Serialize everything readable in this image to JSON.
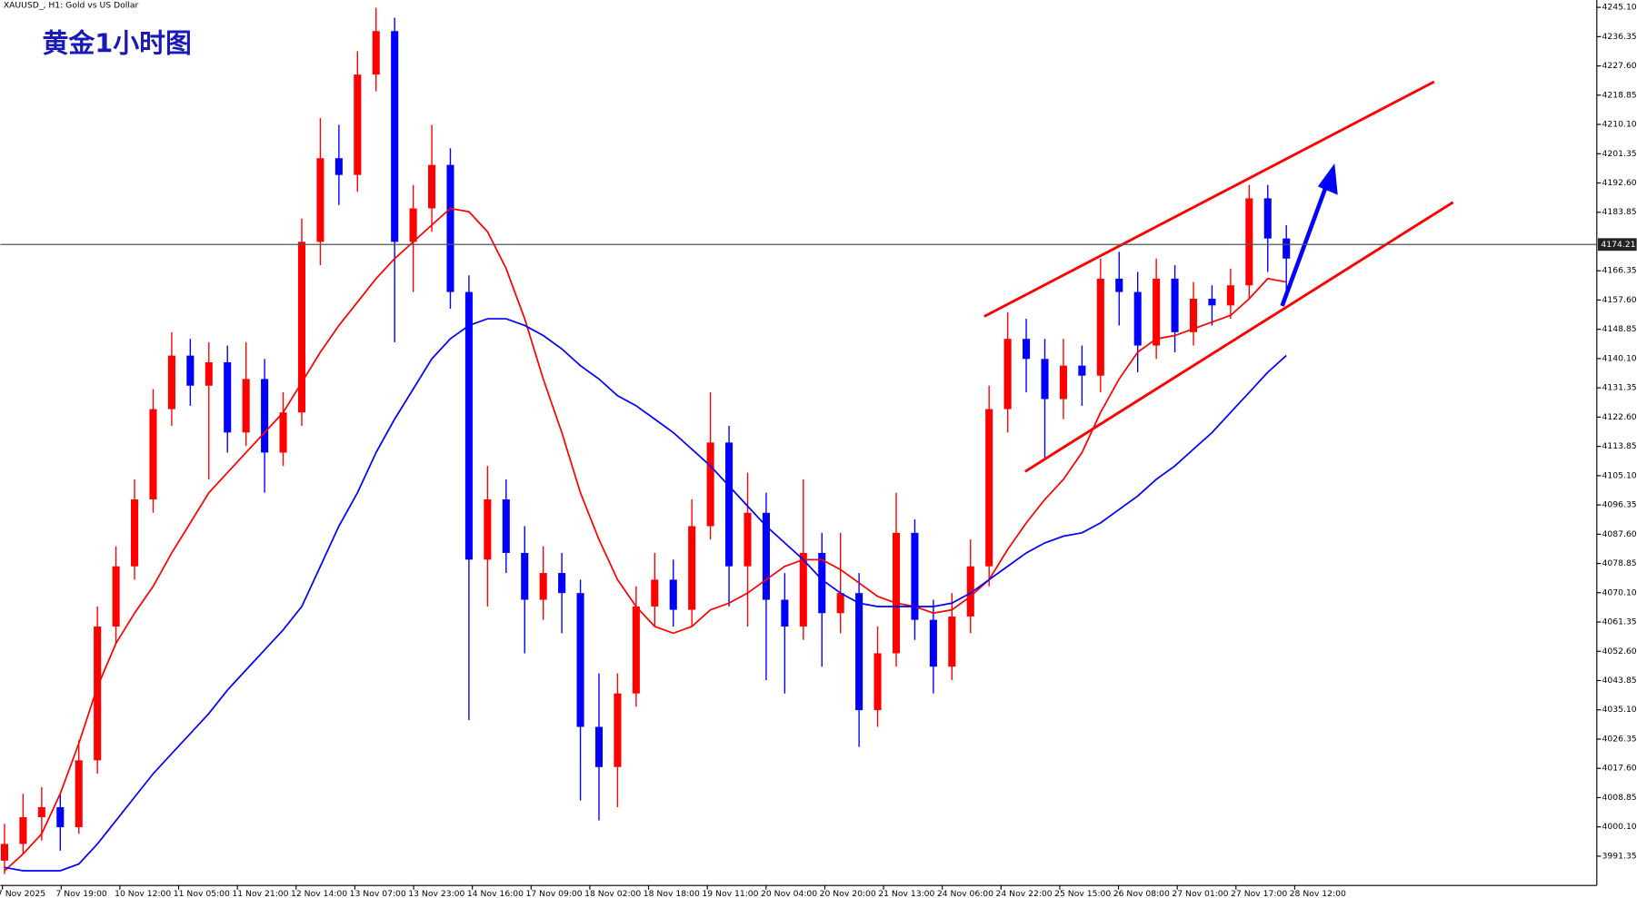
{
  "chart_data": {
    "type": "candlestick",
    "symbol_title": "XAUUSD_, H1:  Gold vs US Dollar",
    "title": "黄金1小时图",
    "ylim": [
      3982.6,
      4247.3
    ],
    "yticks": [
      {
        "value": 4245.1,
        "label": "4245.10"
      },
      4236.35,
      {
        "value": 4227.6,
        "label": "4227.60"
      },
      4218.85,
      {
        "value": 4210.1,
        "label": "4210.10"
      },
      4201.35,
      {
        "value": 4192.6,
        "label": "4192.60"
      },
      4183.85,
      4166.35,
      {
        "value": 4157.6,
        "label": "4157.60"
      },
      4148.85,
      {
        "value": 4140.1,
        "label": "4140.10"
      },
      4131.35,
      {
        "value": 4122.6,
        "label": "4122.60"
      },
      4113.85,
      {
        "value": 4105.1,
        "label": "4105.10"
      },
      4096.35,
      {
        "value": 4087.6,
        "label": "4087.60"
      },
      4078.85,
      {
        "value": 4070.1,
        "label": "4070.10"
      },
      4061.35,
      {
        "value": 4052.6,
        "label": "4052.60"
      },
      4043.85,
      {
        "value": 4035.1,
        "label": "4035.10"
      },
      4026.35,
      {
        "value": 4017.6,
        "label": "4017.60"
      },
      4008.85,
      {
        "value": 4000.1,
        "label": "4000.10"
      },
      3991.35
    ],
    "current_price": 4174.21,
    "x_labels": [
      "7 Nov 2025",
      "7 Nov 19:00",
      "10 Nov 12:00",
      "11 Nov 05:00",
      "11 Nov 21:00",
      "12 Nov 14:00",
      "13 Nov 07:00",
      "13 Nov 23:00",
      "14 Nov 16:00",
      "17 Nov 09:00",
      "18 Nov 02:00",
      "18 Nov 18:00",
      "19 Nov 11:00",
      "20 Nov 04:00",
      "20 Nov 20:00",
      "21 Nov 13:00",
      "24 Nov 06:00",
      "24 Nov 22:00",
      "25 Nov 15:00",
      "26 Nov 08:00",
      "27 Nov 01:00",
      "27 Nov 17:00",
      "28 Nov 12:00"
    ],
    "up_color": "#ff0000",
    "down_color": "#0000ff",
    "candles": [
      [
        3990,
        4001,
        3986,
        3995
      ],
      [
        3995,
        4010,
        3992,
        4003
      ],
      [
        4003,
        4012,
        3996,
        4006
      ],
      [
        4006,
        4010,
        3993,
        4000
      ],
      [
        4000,
        4026,
        3998,
        4020
      ],
      [
        4020,
        4066,
        4016,
        4060
      ],
      [
        4060,
        4084,
        4055,
        4078
      ],
      [
        4078,
        4104,
        4074,
        4098
      ],
      [
        4098,
        4131,
        4094,
        4125
      ],
      [
        4125,
        4148,
        4120,
        4141
      ],
      [
        4141,
        4146,
        4126,
        4132
      ],
      [
        4132,
        4145,
        4104,
        4139
      ],
      [
        4139,
        4144,
        4112,
        4118
      ],
      [
        4118,
        4145,
        4114,
        4134
      ],
      [
        4134,
        4140,
        4100,
        4112
      ],
      [
        4112,
        4130,
        4108,
        4124
      ],
      [
        4124,
        4182,
        4120,
        4175
      ],
      [
        4175,
        4212,
        4168,
        4200
      ],
      [
        4200,
        4210,
        4186,
        4195
      ],
      [
        4195,
        4232,
        4190,
        4225
      ],
      [
        4225,
        4245,
        4220,
        4238
      ],
      [
        4238,
        4242,
        4145,
        4175
      ],
      [
        4175,
        4192,
        4160,
        4185
      ],
      [
        4185,
        4210,
        4178,
        4198
      ],
      [
        4198,
        4203,
        4155,
        4160
      ],
      [
        4160,
        4165,
        4032,
        4080
      ],
      [
        4080,
        4108,
        4066,
        4098
      ],
      [
        4098,
        4104,
        4076,
        4082
      ],
      [
        4082,
        4090,
        4052,
        4068
      ],
      [
        4068,
        4084,
        4062,
        4076
      ],
      [
        4076,
        4082,
        4058,
        4070
      ],
      [
        4070,
        4074,
        4008,
        4030
      ],
      [
        4030,
        4046,
        4002,
        4018
      ],
      [
        4018,
        4046,
        4006,
        4040
      ],
      [
        4040,
        4072,
        4036,
        4066
      ],
      [
        4066,
        4082,
        4060,
        4074
      ],
      [
        4074,
        4080,
        4060,
        4065
      ],
      [
        4065,
        4098,
        4060,
        4090
      ],
      [
        4090,
        4130,
        4086,
        4115
      ],
      [
        4115,
        4120,
        4066,
        4078
      ],
      [
        4078,
        4106,
        4060,
        4094
      ],
      [
        4094,
        4100,
        4044,
        4068
      ],
      [
        4068,
        4076,
        4040,
        4060
      ],
      [
        4060,
        4104,
        4056,
        4082
      ],
      [
        4082,
        4088,
        4048,
        4064
      ],
      [
        4064,
        4088,
        4058,
        4070
      ],
      [
        4070,
        4076,
        4024,
        4035
      ],
      [
        4035,
        4060,
        4030,
        4052
      ],
      [
        4052,
        4100,
        4048,
        4088
      ],
      [
        4088,
        4092,
        4056,
        4062
      ],
      [
        4062,
        4068,
        4040,
        4048
      ],
      [
        4048,
        4070,
        4044,
        4063
      ],
      [
        4063,
        4086,
        4058,
        4078
      ],
      [
        4078,
        4132,
        4072,
        4125
      ],
      [
        4125,
        4154,
        4118,
        4146
      ],
      [
        4146,
        4152,
        4130,
        4140
      ],
      [
        4140,
        4146,
        4110,
        4128
      ],
      [
        4128,
        4146,
        4122,
        4138
      ],
      [
        4138,
        4144,
        4126,
        4135
      ],
      [
        4135,
        4170,
        4130,
        4164
      ],
      [
        4164,
        4172,
        4150,
        4160
      ],
      [
        4160,
        4166,
        4136,
        4144
      ],
      [
        4144,
        4170,
        4140,
        4164
      ],
      [
        4164,
        4168,
        4142,
        4148
      ],
      [
        4148,
        4163,
        4144,
        4158
      ],
      [
        4158,
        4162,
        4150,
        4156
      ],
      [
        4156,
        4167,
        4152,
        4162
      ],
      [
        4162,
        4192,
        4158,
        4188
      ],
      [
        4188,
        4192,
        4166,
        4176
      ],
      [
        4176,
        4180,
        4158,
        4170
      ]
    ],
    "ma_lines": [
      {
        "color": "#ff0000",
        "values": [
          3987,
          3992,
          3998,
          4010,
          4025,
          4042,
          4055,
          4064,
          4072,
          4082,
          4091,
          4100,
          4106,
          4112,
          4118,
          4124,
          4133,
          4142,
          4150,
          4157,
          4164,
          4170,
          4175,
          4180,
          4185,
          4184,
          4178,
          4167,
          4152,
          4134,
          4118,
          4100,
          4086,
          4074,
          4066,
          4060,
          4058,
          4060,
          4065,
          4067,
          4070,
          4074,
          4078,
          4080,
          4080,
          4077,
          4073,
          4069,
          4067,
          4066,
          4064,
          4065,
          4069,
          4074,
          4083,
          4091,
          4098,
          4104,
          4112,
          4124,
          4134,
          4142,
          4146,
          4147,
          4149,
          4151,
          4153,
          4158,
          4164,
          4163
        ]
      },
      {
        "color": "#0000ff",
        "values": [
          3988,
          3987,
          3987,
          3987,
          3989,
          3995,
          4002,
          4009,
          4016,
          4022,
          4028,
          4034,
          4041,
          4047,
          4053,
          4059,
          4066,
          4078,
          4090,
          4100,
          4112,
          4122,
          4131,
          4140,
          4146,
          4150,
          4152,
          4152,
          4150,
          4147,
          4143,
          4138,
          4134,
          4129,
          4126,
          4122,
          4118,
          4113,
          4108,
          4102,
          4096,
          4090,
          4085,
          4080,
          4074,
          4070,
          4067,
          4066,
          4066,
          4066,
          4066,
          4067,
          4070,
          4074,
          4078,
          4082,
          4085,
          4087,
          4088,
          4091,
          4095,
          4099,
          4104,
          4108,
          4113,
          4118,
          4124,
          4130,
          4136,
          4141
        ]
      }
    ]
  }
}
